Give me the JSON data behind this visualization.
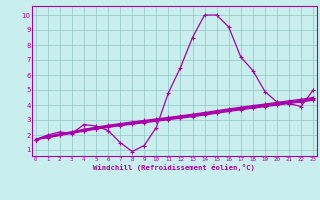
{
  "xlabel": "Windchill (Refroidissement éolien,°C)",
  "bg_color": "#c8eeed",
  "line_color": "#aa00aa",
  "grid_color": "#99cccc",
  "axes_color": "#aa00aa",
  "x_ticks": [
    0,
    1,
    2,
    3,
    4,
    5,
    6,
    7,
    8,
    9,
    10,
    11,
    12,
    13,
    14,
    15,
    16,
    17,
    18,
    19,
    20,
    21,
    22,
    23
  ],
  "y_ticks": [
    1,
    2,
    3,
    4,
    5,
    6,
    7,
    8,
    9,
    10
  ],
  "xlim": [
    -0.3,
    23.3
  ],
  "ylim": [
    0.6,
    10.6
  ],
  "series": [
    [
      1.7,
      2.0,
      2.2,
      2.1,
      2.7,
      2.6,
      2.3,
      1.5,
      0.9,
      1.3,
      2.5,
      4.8,
      6.5,
      8.5,
      10.0,
      10.0,
      9.2,
      7.2,
      6.3,
      4.9,
      4.2,
      4.1,
      3.9,
      5.0
    ],
    [
      1.7,
      1.92,
      2.08,
      2.22,
      2.38,
      2.52,
      2.65,
      2.76,
      2.87,
      2.97,
      3.07,
      3.17,
      3.28,
      3.38,
      3.5,
      3.62,
      3.74,
      3.85,
      3.96,
      4.06,
      4.17,
      4.28,
      4.38,
      4.5
    ],
    [
      1.7,
      1.88,
      2.04,
      2.19,
      2.34,
      2.48,
      2.6,
      2.71,
      2.82,
      2.92,
      3.02,
      3.12,
      3.22,
      3.33,
      3.44,
      3.56,
      3.68,
      3.79,
      3.9,
      4.0,
      4.11,
      4.21,
      4.32,
      4.44
    ],
    [
      1.7,
      1.85,
      2.0,
      2.15,
      2.3,
      2.43,
      2.55,
      2.66,
      2.77,
      2.87,
      2.97,
      3.07,
      3.17,
      3.28,
      3.39,
      3.51,
      3.63,
      3.74,
      3.85,
      3.95,
      4.05,
      4.16,
      4.26,
      4.38
    ],
    [
      1.7,
      1.82,
      1.97,
      2.11,
      2.26,
      2.39,
      2.51,
      2.62,
      2.72,
      2.82,
      2.92,
      3.02,
      3.12,
      3.22,
      3.33,
      3.45,
      3.57,
      3.68,
      3.79,
      3.89,
      3.99,
      4.1,
      4.2,
      4.32
    ]
  ]
}
